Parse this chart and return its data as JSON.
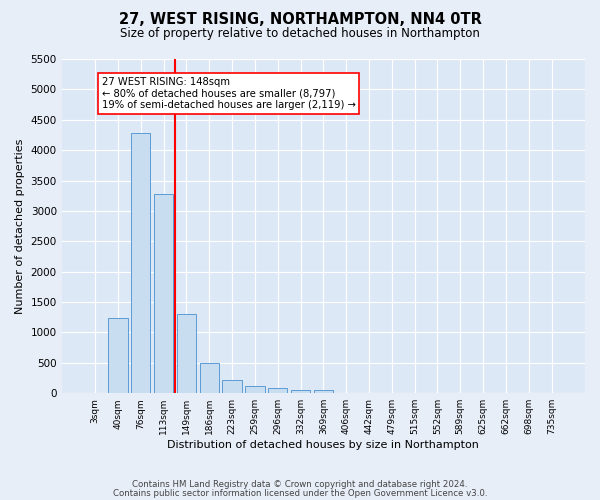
{
  "title": "27, WEST RISING, NORTHAMPTON, NN4 0TR",
  "subtitle": "Size of property relative to detached houses in Northampton",
  "xlabel": "Distribution of detached houses by size in Northampton",
  "ylabel": "Number of detached properties",
  "bar_color": "#c8ddf0",
  "bar_edge_color": "#5b9bd5",
  "background_color": "#dce8f5",
  "grid_color": "#ffffff",
  "fig_bg_color": "#e8eef8",
  "categories": [
    "3sqm",
    "40sqm",
    "76sqm",
    "113sqm",
    "149sqm",
    "186sqm",
    "223sqm",
    "259sqm",
    "296sqm",
    "332sqm",
    "369sqm",
    "406sqm",
    "442sqm",
    "479sqm",
    "515sqm",
    "552sqm",
    "589sqm",
    "625sqm",
    "662sqm",
    "698sqm",
    "735sqm"
  ],
  "values": [
    0,
    1230,
    4280,
    3280,
    1300,
    500,
    220,
    120,
    80,
    60,
    50,
    0,
    0,
    0,
    0,
    0,
    0,
    0,
    0,
    0,
    0
  ],
  "ylim": [
    0,
    5500
  ],
  "yticks": [
    0,
    500,
    1000,
    1500,
    2000,
    2500,
    3000,
    3500,
    4000,
    4500,
    5000,
    5500
  ],
  "red_line_x": 3.5,
  "annotation_title": "27 WEST RISING: 148sqm",
  "annotation_line1": "← 80% of detached houses are smaller (8,797)",
  "annotation_line2": "19% of semi-detached houses are larger (2,119) →",
  "footer_line1": "Contains HM Land Registry data © Crown copyright and database right 2024.",
  "footer_line2": "Contains public sector information licensed under the Open Government Licence v3.0."
}
